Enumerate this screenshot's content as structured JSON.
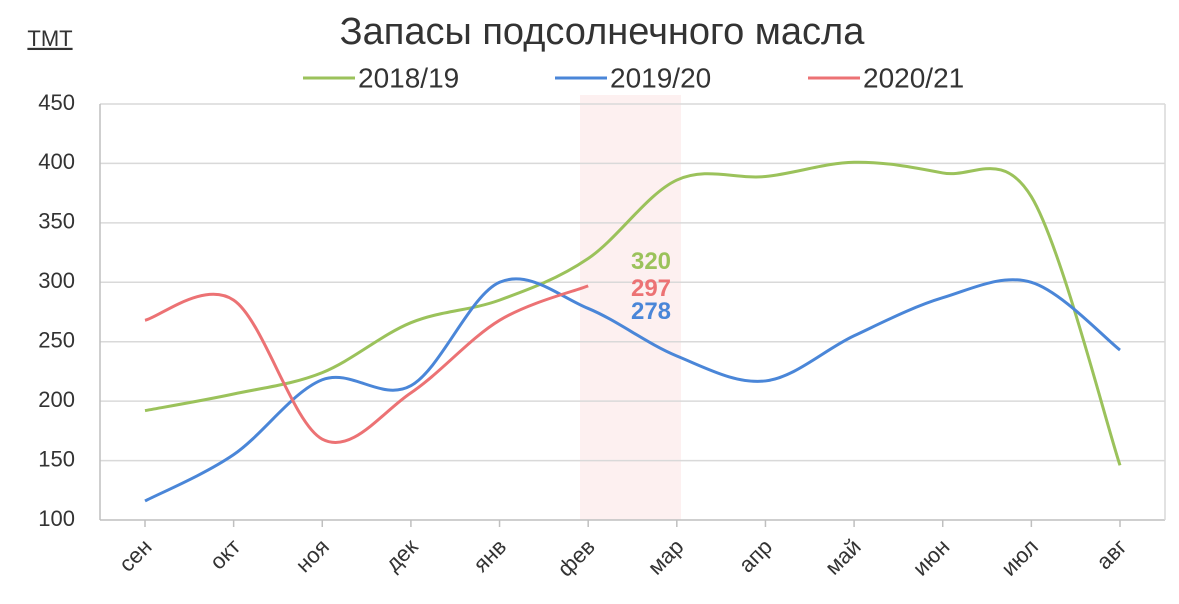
{
  "chart_data": {
    "type": "line",
    "title": "Запасы подсолнечного масла",
    "ylabel": "ТМТ",
    "categories": [
      "сен",
      "окт",
      "ноя",
      "дек",
      "янв",
      "фев",
      "мар",
      "апр",
      "май",
      "июн",
      "июл",
      "авг"
    ],
    "series": [
      {
        "name": "2018/19",
        "color": "#9bc25b",
        "values": [
          192,
          206,
          224,
          266,
          285,
          320,
          386,
          389,
          401,
          392,
          372,
          146
        ]
      },
      {
        "name": "2019/20",
        "color": "#4a86d8",
        "values": [
          116,
          155,
          218,
          213,
          300,
          278,
          238,
          217,
          255,
          287,
          300,
          243
        ]
      },
      {
        "name": "2020/21",
        "color": "#ec7274",
        "values": [
          268,
          285,
          168,
          207,
          268,
          297,
          null,
          null,
          null,
          null,
          null,
          null
        ]
      }
    ],
    "ylim": [
      100,
      450
    ],
    "yticks": [
      100,
      150,
      200,
      250,
      300,
      350,
      400,
      450
    ],
    "grid": true
  }
}
